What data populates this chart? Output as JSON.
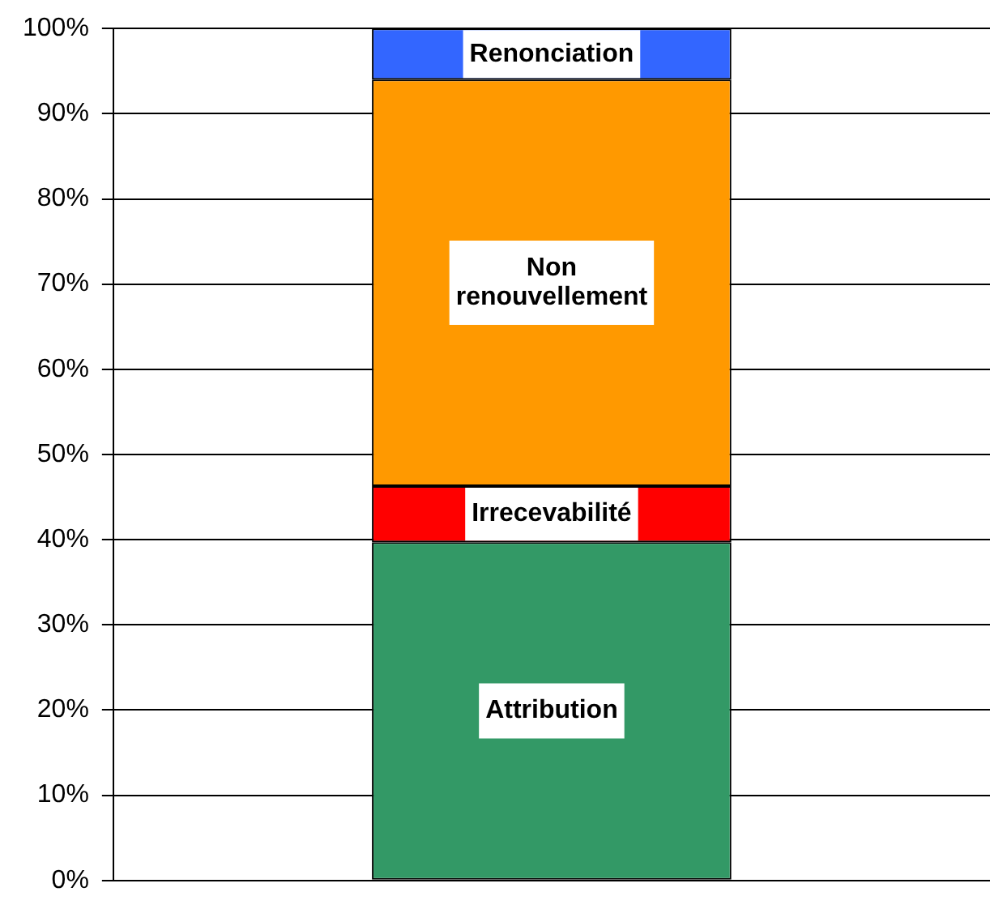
{
  "chart_data": {
    "type": "bar",
    "stacked": true,
    "categories": [
      null
    ],
    "series": [
      {
        "name": "Attribution",
        "color": "#339966",
        "values": [
          39.7
        ]
      },
      {
        "name": "Irrecevabilité",
        "color": "#ff0000",
        "values": [
          6.6
        ]
      },
      {
        "name": "Non renouvellement",
        "color": "#ff9900",
        "values": [
          47.7
        ]
      },
      {
        "name": "Renonciation",
        "color": "#3366ff",
        "values": [
          6.0
        ]
      }
    ],
    "ylim": [
      0,
      100
    ],
    "yticks": [
      {
        "value": 0,
        "label": "0%"
      },
      {
        "value": 10,
        "label": "10%"
      },
      {
        "value": 20,
        "label": "20%"
      },
      {
        "value": 30,
        "label": "30%"
      },
      {
        "value": 40,
        "label": "40%"
      },
      {
        "value": 50,
        "label": "50%"
      },
      {
        "value": 60,
        "label": "60%"
      },
      {
        "value": 70,
        "label": "70%"
      },
      {
        "value": 80,
        "label": "80%"
      },
      {
        "value": 90,
        "label": "90%"
      },
      {
        "value": 100,
        "label": "100%"
      }
    ],
    "grid": "y",
    "legend": false
  }
}
